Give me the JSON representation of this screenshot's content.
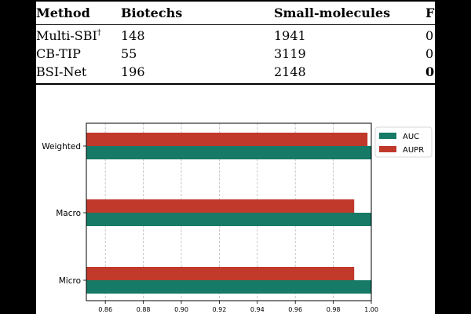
{
  "table": {
    "headers": [
      "Method",
      "Biotechs",
      "Small-molecules",
      "F"
    ],
    "rows": [
      {
        "method": "Multi-SBI",
        "sup": "†",
        "biotechs": "148",
        "small": "1941",
        "extra": "0"
      },
      {
        "method": "CB-TIP",
        "sup": "",
        "biotechs": "55",
        "small": "3119",
        "extra": "0"
      },
      {
        "method": "BSI-Net",
        "sup": "",
        "biotechs": "196",
        "small": "2148",
        "extra": "0"
      }
    ]
  },
  "chart_data": {
    "type": "bar",
    "orientation": "horizontal",
    "categories": [
      "Weighted",
      "Macro",
      "Micro"
    ],
    "series": [
      {
        "name": "AUC",
        "color": "#167a66",
        "values": [
          1.0,
          1.0,
          1.0
        ]
      },
      {
        "name": "AUPR",
        "color": "#c0392b",
        "values": [
          0.998,
          0.991,
          0.991
        ]
      }
    ],
    "xlim": [
      0.85,
      1.0
    ],
    "xticks": [
      "0.86",
      "0.88",
      "0.90",
      "0.92",
      "0.94",
      "0.96",
      "0.98",
      "1.00"
    ],
    "legend": "top-right",
    "grid": true
  }
}
